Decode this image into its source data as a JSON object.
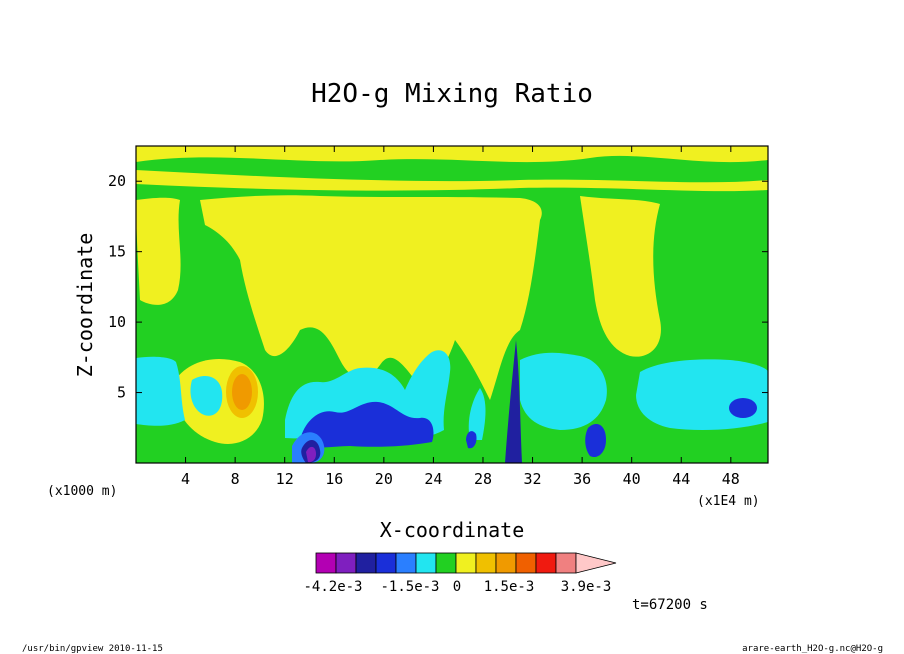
{
  "chart_data": {
    "type": "heatmap",
    "title": "H2O-g Mixing Ratio",
    "xlabel": "X-coordinate",
    "ylabel": "Z-coordinate",
    "x_unit_left": "(x1000 m)",
    "x_unit_right": "(x1E4 m)",
    "xlim": [
      0,
      51
    ],
    "ylim": [
      0,
      22.5
    ],
    "x_ticks": [
      4,
      8,
      12,
      16,
      20,
      24,
      28,
      32,
      36,
      40,
      44,
      48
    ],
    "y_ticks": [
      5,
      10,
      15,
      20
    ],
    "colorbar": {
      "levels": 12,
      "colors": [
        "#b300b3",
        "#7f1fbf",
        "#2020a0",
        "#1a2fd9",
        "#2a7fff",
        "#22e5f0",
        "#22d022",
        "#f0f020",
        "#f0c000",
        "#f09a00",
        "#f06000",
        "#f01a10",
        "#f08080",
        "#ffc8c8"
      ],
      "labels": [
        "-4.2e-3",
        "-1.5e-3",
        "0",
        "1.5e-3",
        "3.9e-3"
      ]
    },
    "time_label": "t=67200 s",
    "regions": [
      {
        "level": "green",
        "x": 0,
        "z": 0,
        "note": "background"
      },
      {
        "level": "cyan",
        "x": 4,
        "z": 4
      },
      {
        "level": "orange",
        "x": 8.5,
        "z": 5.5
      },
      {
        "level": "blue",
        "x": 20,
        "z": 3
      },
      {
        "level": "cyan",
        "x": 34,
        "z": 5
      },
      {
        "level": "cyan",
        "x": 46,
        "z": 5
      }
    ]
  },
  "footer": {
    "left": "/usr/bin/gpview   2010-11-15",
    "right": "arare-earth_H2O-g.nc@H2O-g"
  }
}
